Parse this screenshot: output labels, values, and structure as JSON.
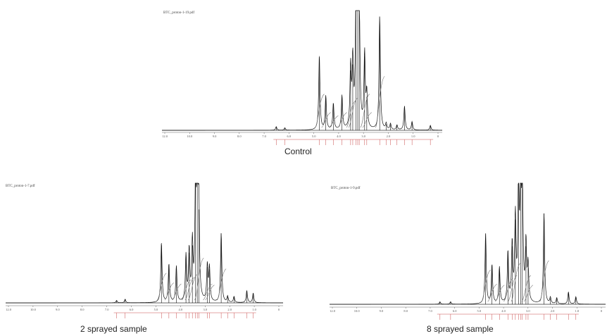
{
  "chart_data": [
    {
      "type": "line",
      "title": "Control",
      "file_label": "BTC_proton-1-19.pdf",
      "x_ticks": [
        "12.0",
        "10.0",
        "9.0",
        "8.0",
        "7.0",
        "6.0",
        "5.0",
        "4.0",
        "3.0",
        "2.0",
        "1.0",
        "0"
      ],
      "xlim": [
        12.5,
        -0.5
      ],
      "series": [
        {
          "peaks": [
            {
              "ppm": 7.2,
              "h": 0.03
            },
            {
              "ppm": 6.8,
              "h": 0.02
            },
            {
              "ppm": 5.2,
              "h": 0.62
            },
            {
              "ppm": 4.9,
              "h": 0.28
            },
            {
              "ppm": 4.55,
              "h": 0.22
            },
            {
              "ppm": 4.15,
              "h": 0.28
            },
            {
              "ppm": 3.75,
              "h": 0.5
            },
            {
              "ppm": 3.65,
              "h": 0.55
            },
            {
              "ppm": 3.5,
              "h": 1.0
            },
            {
              "ppm": 3.42,
              "h": 1.0
            },
            {
              "ppm": 3.35,
              "h": 1.0
            },
            {
              "ppm": 3.1,
              "h": 0.62
            },
            {
              "ppm": 3.0,
              "h": 0.28
            },
            {
              "ppm": 2.4,
              "h": 0.95
            },
            {
              "ppm": 2.1,
              "h": 0.05
            },
            {
              "ppm": 1.9,
              "h": 0.05
            },
            {
              "ppm": 1.6,
              "h": 0.04
            },
            {
              "ppm": 1.25,
              "h": 0.2
            },
            {
              "ppm": 0.9,
              "h": 0.07
            },
            {
              "ppm": 0.05,
              "h": 0.04
            }
          ]
        }
      ]
    },
    {
      "type": "line",
      "title": "2 sprayed sample",
      "file_label": "BTC_proton-1-7.pdf",
      "x_ticks": [
        "12.0",
        "10.0",
        "9.0",
        "8.0",
        "7.0",
        "6.0",
        "5.0",
        "4.0",
        "3.0",
        "2.0",
        "1.0",
        "0"
      ],
      "xlim": [
        12.5,
        -0.5
      ],
      "series": [
        {
          "peaks": [
            {
              "ppm": 7.3,
              "h": 0.02
            },
            {
              "ppm": 6.9,
              "h": 0.03
            },
            {
              "ppm": 5.2,
              "h": 0.5
            },
            {
              "ppm": 4.85,
              "h": 0.32
            },
            {
              "ppm": 4.5,
              "h": 0.3
            },
            {
              "ppm": 4.05,
              "h": 0.38
            },
            {
              "ppm": 3.9,
              "h": 0.42
            },
            {
              "ppm": 3.75,
              "h": 0.48
            },
            {
              "ppm": 3.6,
              "h": 1.0
            },
            {
              "ppm": 3.52,
              "h": 1.0
            },
            {
              "ppm": 3.45,
              "h": 0.78
            },
            {
              "ppm": 3.05,
              "h": 0.3
            },
            {
              "ppm": 2.95,
              "h": 0.28
            },
            {
              "ppm": 2.4,
              "h": 0.58
            },
            {
              "ppm": 2.1,
              "h": 0.05
            },
            {
              "ppm": 1.8,
              "h": 0.05
            },
            {
              "ppm": 1.2,
              "h": 0.1
            },
            {
              "ppm": 0.9,
              "h": 0.08
            }
          ]
        }
      ]
    },
    {
      "type": "line",
      "title": "8 sprayed sample",
      "file_label": "BTC_proton-1-9.pdf",
      "x_ticks": [
        "12.0",
        "10.0",
        "9.0",
        "8.0",
        "7.0",
        "6.0",
        "5.0",
        "4.0",
        "3.0",
        "2.0",
        "1.0",
        "0"
      ],
      "xlim": [
        12.5,
        -0.5
      ],
      "series": [
        {
          "peaks": [
            {
              "ppm": 7.3,
              "h": 0.02
            },
            {
              "ppm": 6.8,
              "h": 0.02
            },
            {
              "ppm": 5.15,
              "h": 0.58
            },
            {
              "ppm": 4.85,
              "h": 0.32
            },
            {
              "ppm": 4.5,
              "h": 0.3
            },
            {
              "ppm": 4.1,
              "h": 0.42
            },
            {
              "ppm": 3.9,
              "h": 0.48
            },
            {
              "ppm": 3.75,
              "h": 0.7
            },
            {
              "ppm": 3.6,
              "h": 1.0
            },
            {
              "ppm": 3.5,
              "h": 1.0
            },
            {
              "ppm": 3.42,
              "h": 1.0
            },
            {
              "ppm": 3.25,
              "h": 0.48
            },
            {
              "ppm": 3.15,
              "h": 0.3
            },
            {
              "ppm": 2.4,
              "h": 0.75
            },
            {
              "ppm": 2.1,
              "h": 0.05
            },
            {
              "ppm": 1.8,
              "h": 0.05
            },
            {
              "ppm": 1.25,
              "h": 0.1
            },
            {
              "ppm": 0.9,
              "h": 0.06
            }
          ]
        }
      ]
    }
  ]
}
